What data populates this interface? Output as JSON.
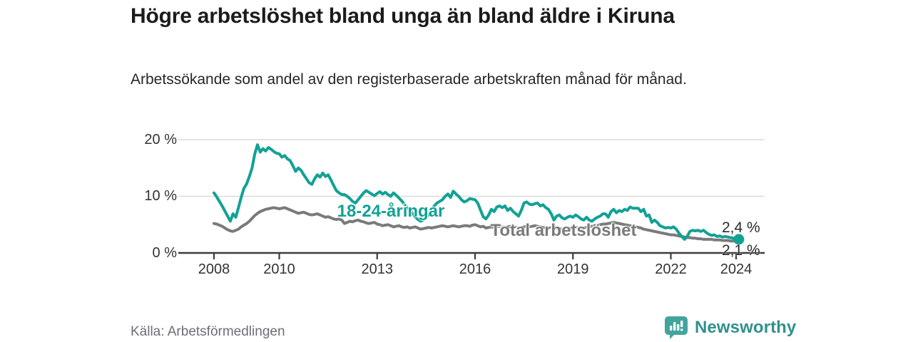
{
  "header": {
    "title": "Högre arbetslöshet bland unga än bland äldre i Kiruna",
    "subtitle": "Arbetssökande som andel av den registerbaserade arbetskraften månad för månad."
  },
  "footer": {
    "source": "Källa: Arbetsförmedlingen",
    "brand": "Newsworthy"
  },
  "colors": {
    "young_line": "#12a195",
    "total_line": "#7a7a7a",
    "axis": "#3c3c3c",
    "grid": "#dcdcdc",
    "tick_text": "#333333",
    "logo_teal": "#43a49e"
  },
  "chart_data": {
    "type": "line",
    "title": "Högre arbetslöshet bland unga än bland äldre i Kiruna",
    "subtitle": "Arbetssökande som andel av den registerbaserade arbetskraften månad för månad.",
    "xlabel": "",
    "ylabel": "",
    "ylim": [
      0,
      20
    ],
    "grid": "horizontal",
    "legend_position": "inline-labels",
    "x_unit": "month",
    "x_start_year": 2008,
    "x_end": "2024-02",
    "x_tick_years": [
      2008,
      2010,
      2013,
      2016,
      2019,
      2022,
      2024
    ],
    "y_ticks": [
      {
        "value": 0,
        "label": "0 %"
      },
      {
        "value": 10,
        "label": "10 %"
      },
      {
        "value": 20,
        "label": "20 %"
      }
    ],
    "series": [
      {
        "name": "18-24-åringar",
        "color": "#12a195",
        "end_dot": true,
        "values": [
          10.6,
          9.9,
          9.1,
          8.3,
          7.4,
          6.5,
          5.6,
          6.9,
          6.3,
          8.0,
          9.8,
          11.4,
          12.2,
          13.5,
          15.0,
          17.5,
          19.1,
          17.8,
          18.4,
          18.0,
          18.6,
          18.3,
          17.9,
          17.6,
          17.5,
          16.9,
          17.2,
          16.6,
          16.3,
          15.4,
          14.4,
          15.0,
          14.6,
          13.8,
          13.1,
          12.4,
          12.1,
          13.1,
          13.8,
          13.4,
          14.1,
          13.5,
          13.8,
          12.9,
          11.9,
          11.0,
          10.6,
          10.3,
          10.3,
          10.0,
          9.6,
          9.1,
          8.8,
          9.4,
          10.0,
          10.6,
          11.0,
          10.7,
          10.4,
          10.1,
          10.5,
          10.8,
          10.4,
          10.7,
          10.3,
          10.0,
          10.6,
          10.2,
          9.7,
          9.2,
          8.6,
          8.0,
          7.5,
          7.0,
          6.4,
          5.9,
          5.6,
          5.8,
          6.2,
          6.9,
          7.6,
          8.3,
          8.8,
          9.1,
          9.4,
          10.0,
          10.4,
          9.8,
          10.9,
          10.4,
          10.0,
          9.4,
          9.0,
          9.2,
          9.6,
          9.5,
          9.4,
          8.8,
          7.6,
          6.4,
          6.0,
          6.7,
          7.7,
          7.3,
          8.1,
          8.3,
          8.0,
          8.3,
          7.5,
          7.9,
          7.3,
          6.9,
          6.5,
          7.5,
          8.8,
          9.0,
          8.6,
          8.5,
          8.7,
          8.8,
          8.3,
          8.5,
          8.0,
          7.7,
          6.9,
          5.8,
          6.5,
          6.7,
          6.2,
          6.0,
          6.3,
          6.5,
          6.3,
          6.7,
          6.4,
          6.0,
          5.8,
          6.3,
          5.8,
          5.6,
          6.0,
          6.3,
          6.5,
          6.9,
          6.9,
          6.3,
          7.3,
          7.7,
          7.1,
          7.5,
          7.3,
          7.7,
          7.5,
          8.1,
          7.9,
          7.9,
          7.9,
          7.3,
          7.7,
          6.5,
          6.7,
          5.4,
          5.8,
          5.4,
          4.8,
          4.6,
          4.4,
          4.5,
          4.4,
          4.6,
          4.2,
          3.5,
          2.9,
          2.4,
          2.9,
          3.8,
          4.0,
          3.9,
          4.0,
          3.8,
          4.0,
          3.6,
          3.3,
          3.1,
          3.2,
          2.9,
          3.0,
          2.8,
          2.9,
          2.8,
          2.7,
          2.6,
          2.5,
          2.4
        ]
      },
      {
        "name": "Total arbetslöshet",
        "color": "#7a7a7a",
        "end_dot": false,
        "values": [
          5.2,
          5.1,
          4.9,
          4.7,
          4.4,
          4.1,
          3.9,
          3.8,
          4.0,
          4.2,
          4.6,
          4.9,
          5.2,
          5.6,
          6.1,
          6.6,
          7.0,
          7.3,
          7.5,
          7.7,
          7.8,
          7.9,
          8.0,
          7.9,
          7.8,
          7.9,
          8.0,
          7.8,
          7.6,
          7.4,
          7.2,
          7.0,
          7.1,
          7.2,
          7.0,
          6.8,
          6.7,
          6.8,
          6.9,
          6.7,
          6.5,
          6.3,
          6.4,
          6.2,
          6.0,
          5.9,
          6.0,
          5.8,
          5.2,
          5.4,
          5.6,
          5.5,
          5.7,
          5.8,
          5.6,
          5.5,
          5.3,
          5.2,
          5.3,
          5.4,
          5.1,
          5.0,
          4.8,
          4.9,
          5.0,
          4.8,
          4.6,
          4.7,
          4.8,
          4.6,
          4.5,
          4.6,
          4.4,
          4.5,
          4.6,
          4.4,
          4.2,
          4.3,
          4.4,
          4.5,
          4.4,
          4.5,
          4.6,
          4.7,
          4.8,
          4.7,
          4.6,
          4.7,
          4.8,
          4.7,
          4.6,
          4.7,
          4.8,
          4.8,
          4.7,
          4.9,
          5.0,
          4.8,
          4.6,
          4.7,
          4.4,
          4.5,
          4.6,
          4.5,
          4.6,
          4.7,
          4.6,
          4.5,
          4.6,
          4.7,
          4.6,
          4.5,
          4.4,
          4.5,
          4.6,
          4.7,
          4.6,
          4.7,
          4.8,
          4.7,
          4.6,
          4.5,
          4.4,
          4.5,
          4.4,
          4.3,
          4.4,
          4.3,
          4.2,
          4.3,
          4.4,
          4.3,
          4.4,
          4.5,
          4.4,
          4.3,
          4.4,
          4.5,
          4.6,
          4.7,
          4.8,
          4.9,
          5.0,
          5.1,
          5.1,
          5.2,
          5.3,
          5.4,
          5.3,
          5.2,
          5.1,
          5.0,
          4.9,
          4.8,
          4.7,
          4.6,
          4.5,
          4.4,
          4.2,
          4.1,
          4.0,
          3.9,
          3.8,
          3.7,
          3.6,
          3.5,
          3.4,
          3.3,
          3.2,
          3.2,
          3.1,
          3.0,
          2.9,
          2.8,
          2.7,
          2.7,
          2.6,
          2.6,
          2.5,
          2.5,
          2.4,
          2.4,
          2.4,
          2.4,
          2.3,
          2.3,
          2.3,
          2.2,
          2.2,
          2.2,
          2.1,
          2.1,
          2.1,
          2.1
        ]
      }
    ],
    "end_labels": [
      {
        "series": "18-24-åringar",
        "label": "2,4 %"
      },
      {
        "series": "Total arbetslöshet",
        "label": "2,1 %"
      }
    ]
  }
}
